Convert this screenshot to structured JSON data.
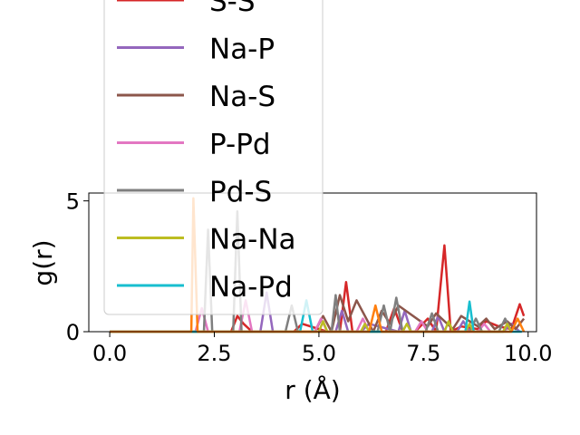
{
  "chart_data": {
    "type": "line",
    "xlabel": "r (Å)",
    "ylabel": "g(r)",
    "xlim": [
      -0.5,
      10.2
    ],
    "ylim": [
      0,
      5.3
    ],
    "xticks": [
      0.0,
      2.5,
      5.0,
      7.5,
      10.0
    ],
    "xtick_labels": [
      "0.0",
      "2.5",
      "5.0",
      "7.5",
      "10.0"
    ],
    "yticks": [
      0,
      5
    ],
    "ytick_labels": [
      "0",
      "5"
    ],
    "grid": false,
    "legend_placement": "top-left",
    "series": [
      {
        "name": "S-S",
        "color": "#d62728",
        "x": [
          0,
          2.9,
          3.05,
          3.2,
          3.4,
          4.4,
          4.6,
          5.2,
          5.5,
          5.65,
          5.8,
          6.6,
          6.8,
          7.0,
          7.3,
          7.6,
          7.8,
          8.0,
          8.15,
          8.4,
          8.8,
          9.0,
          9.3,
          9.6,
          9.8,
          9.9
        ],
        "y": [
          0,
          0,
          0.6,
          0.3,
          0,
          0,
          0.3,
          0,
          0,
          1.9,
          0,
          0,
          0.9,
          0,
          0,
          0.5,
          0,
          3.3,
          0,
          0.2,
          0.1,
          0.4,
          0.2,
          0.1,
          1.05,
          0.6
        ]
      },
      {
        "name": "Na-P",
        "color": "#9467bd",
        "x": [
          0,
          3.6,
          3.75,
          3.9,
          5.4,
          5.55,
          5.7,
          6.0,
          6.2,
          6.9,
          7.05,
          7.2,
          7.7,
          7.85,
          8.0,
          8.3,
          8.45,
          8.6,
          9.4,
          9.6,
          9.8
        ],
        "y": [
          0,
          0,
          1.5,
          0,
          0,
          0.8,
          0,
          0,
          0.3,
          0,
          0.8,
          0,
          0,
          0.6,
          0,
          0,
          0.4,
          0,
          0,
          0.3,
          0
        ]
      },
      {
        "name": "Na-S",
        "color": "#8c564b",
        "x": [
          0,
          4.9,
          5.1,
          5.3,
          5.5,
          5.7,
          5.9,
          6.3,
          6.5,
          6.7,
          6.9,
          7.6,
          7.8,
          8.2,
          8.4,
          8.8,
          9.0,
          9.2,
          9.5,
          9.7,
          9.9
        ],
        "y": [
          0,
          0,
          0.6,
          0,
          1.4,
          0.4,
          1.2,
          0,
          0.8,
          0.3,
          1.0,
          0.2,
          0.7,
          0.1,
          0.6,
          0.2,
          0.5,
          0.1,
          0.4,
          0.1,
          0.5
        ]
      },
      {
        "name": "P-Pd",
        "color": "#e377c2",
        "x": [
          0,
          2.05,
          2.2,
          2.35,
          3.1,
          3.25,
          3.4,
          4.9,
          5.05,
          5.2,
          5.9,
          6.05,
          6.2,
          7.3,
          7.45,
          7.6,
          8.8,
          8.95,
          9.1
        ],
        "y": [
          0,
          0,
          0.9,
          0,
          0,
          1.2,
          0,
          0,
          0.5,
          0,
          0,
          0.5,
          0,
          0,
          0.4,
          0,
          0,
          0.3,
          0
        ]
      },
      {
        "name": "Pd-S",
        "color": "#7f7f7f",
        "x": [
          0,
          2.25,
          2.35,
          2.45,
          2.95,
          3.05,
          3.15,
          4.2,
          4.35,
          4.5,
          5.3,
          5.4,
          5.5,
          6.4,
          6.55,
          6.7,
          6.85,
          7.0,
          7.55,
          7.7,
          7.85,
          8.6,
          8.75,
          8.9,
          9.3,
          9.45,
          9.6
        ],
        "y": [
          0,
          0,
          3.9,
          0,
          0,
          4.6,
          0,
          0,
          1.0,
          0,
          0,
          1.4,
          0,
          0,
          1.0,
          0,
          1.3,
          0,
          0,
          0.7,
          0,
          0,
          0.5,
          0,
          0,
          0.5,
          0
        ]
      },
      {
        "name": "Na-Na",
        "color": "#bcbd22",
        "x": [
          0,
          5.0,
          5.1,
          5.2,
          6.0,
          6.1,
          6.2,
          7.0,
          7.1,
          7.2,
          8.0,
          8.1,
          8.2,
          8.5,
          8.6,
          8.7,
          9.4,
          9.5,
          9.6
        ],
        "y": [
          0,
          0,
          0.4,
          0,
          0,
          0.3,
          0,
          0,
          0.3,
          0,
          0,
          0.4,
          0,
          0,
          0.3,
          0,
          0,
          0.3,
          0
        ]
      },
      {
        "name": "Na-Pd",
        "color": "#17becf",
        "x": [
          0,
          4.55,
          4.7,
          4.85,
          8.5,
          8.6,
          8.7,
          9.85
        ],
        "y": [
          0,
          0,
          1.2,
          0,
          0,
          1.15,
          0,
          0
        ]
      },
      {
        "name": "",
        "color": "#ff7f0e",
        "x": [
          0,
          1.95,
          2.0,
          2.1,
          2.2,
          6.2,
          6.35,
          6.5,
          9.6,
          9.75,
          9.9
        ],
        "y": [
          0,
          0,
          5.1,
          0,
          0,
          0,
          1.0,
          0,
          0,
          0.5,
          0
        ]
      }
    ],
    "legend_entries": [
      "S-S",
      "Na-P",
      "Na-S",
      "P-Pd",
      "Pd-S",
      "Na-Na",
      "Na-Pd"
    ]
  }
}
